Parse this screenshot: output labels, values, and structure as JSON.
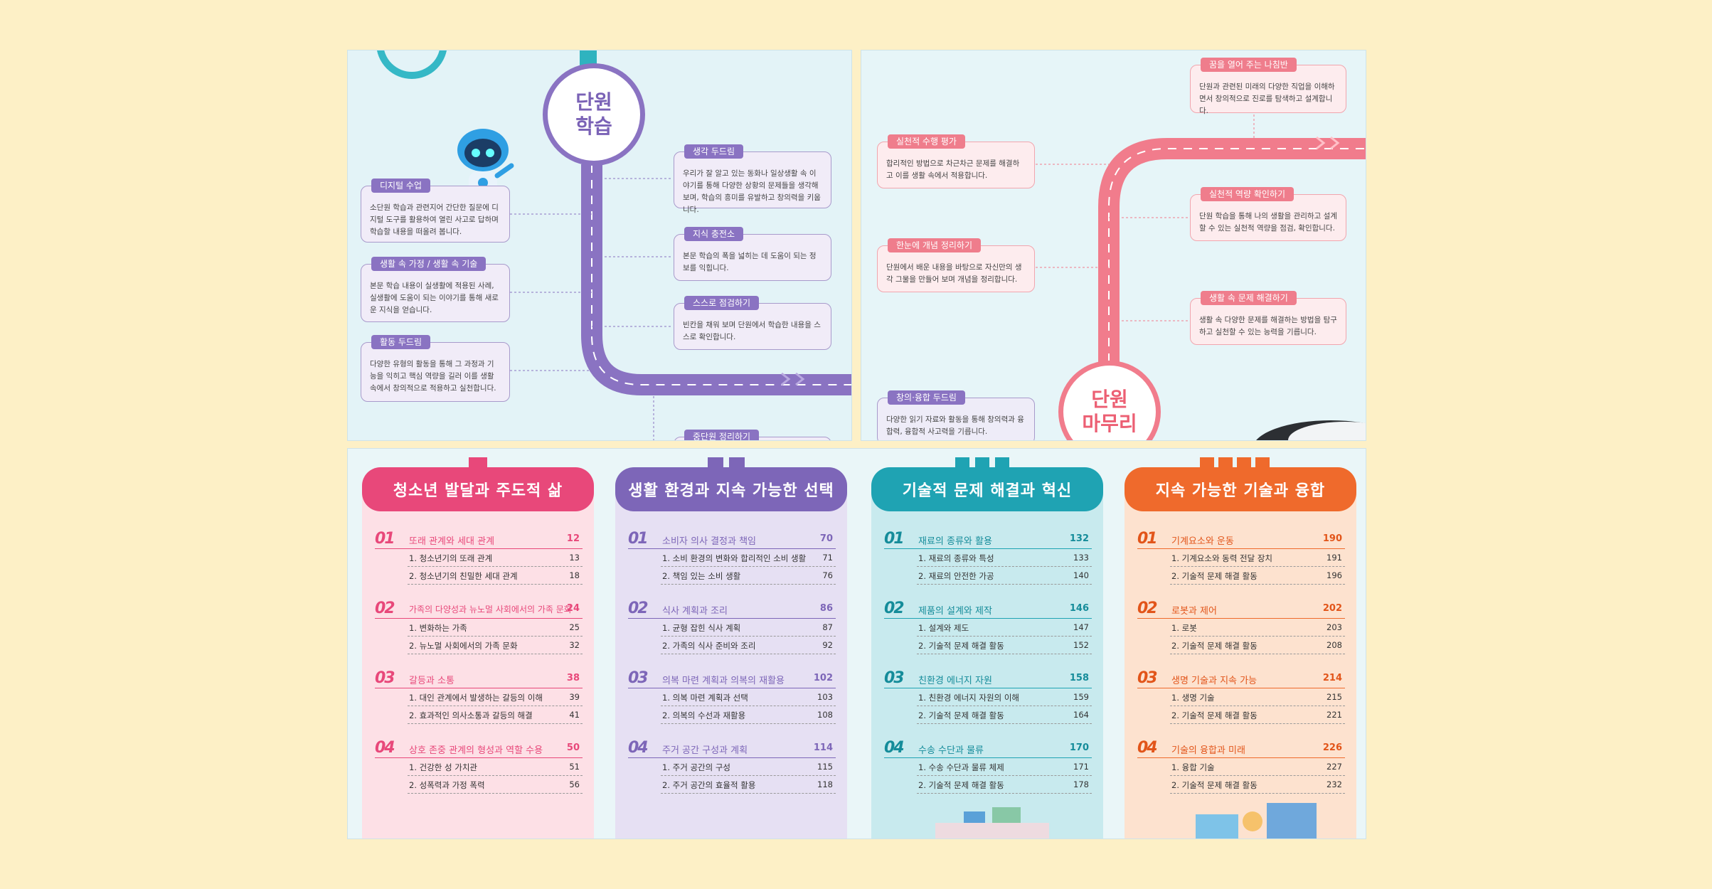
{
  "panel1": {
    "circle": [
      "단원",
      "학습"
    ],
    "boxes": [
      {
        "tag": "생각 두드림",
        "text": "우리가 잘 알고 있는 동화나 일상생활 속 이야기를 통해 다양한 상황의 문제들을 생각해 보며, 학습의 흥미를 유발하고 창의력을 키웁니다."
      },
      {
        "tag": "디지털 수업",
        "text": "소단원 학습과 관련지어 간단한 질문에 디지털 도구를 활용하여 열린 사고로 답하며 학습할 내용을 떠올려 봅니다."
      },
      {
        "tag": "지식 충전소",
        "text": "본문 학습의 폭을 넓히는 데 도움이 되는 정보를 익힙니다."
      },
      {
        "tag": "생활 속 가정 / 생활 속 기술",
        "text": "본문 학습 내용이 실생활에 적용된 사례, 실생활에 도움이 되는 이야기를 통해 새로운 지식을 얻습니다."
      },
      {
        "tag": "스스로 점검하기",
        "text": "빈칸을 채워 보며 단원에서 학습한 내용을 스스로 확인합니다."
      },
      {
        "tag": "활동 두드림",
        "text": "다양한 유형의 활동을 통해 그 과정과 기능을 익히고 핵심 역량을 길러 이를 생활 속에서 창의적으로 적용하고 실천합니다."
      },
      {
        "tag": "중단원 정리하기",
        "text": ""
      }
    ]
  },
  "panel2": {
    "circle": [
      "단원",
      "마무리"
    ],
    "boxes": [
      {
        "tag": "꿈을 열어 주는 나침반",
        "text": "단원과 관련된 미래의 다양한 직업을 이해하면서 창의적으로 진로를 탐색하고 설계합니다."
      },
      {
        "tag": "실천적 수행 평가",
        "text": "합리적인 방법으로 차근차근 문제를 해결하고 이를 생활 속에서 적용합니다."
      },
      {
        "tag": "실천적 역량 확인하기",
        "text": "단원 학습을 통해 나의 생활을 관리하고 설계할 수 있는 실천적 역량을 점검, 확인합니다."
      },
      {
        "tag": "한눈에 개념 정리하기",
        "text": "단원에서 배운 내용을 바탕으로 자신만의 생각 그물을 만들어 보며 개념을 정리합니다."
      },
      {
        "tag": "생활 속 문제 해결하기",
        "text": "생활 속 다양한 문제를 해결하는 방법을 탐구하고 실천할 수 있는 능력을 기릅니다."
      },
      {
        "tag": "창의·융합 두드림",
        "text": "다양한 읽기 자료와 활동을 통해 창의력과 융합력, 융합적 사고력을 기릅니다."
      }
    ]
  },
  "columns": [
    {
      "title": "청소년 발달과 주도적 삶",
      "color": "#e8487a",
      "bg": "#fde0e6",
      "units": [
        {
          "num": "01",
          "title": "또래 관계와 세대 관계",
          "page": "12",
          "subs": [
            [
              "1. 청소년기의 또래 관계",
              "13"
            ],
            [
              "2. 청소년기의 친밀한 세대 관계",
              "18"
            ]
          ]
        },
        {
          "num": "02",
          "title": "가족의 다양성과 뉴노멀 사회에서의 가족 문화",
          "page": "24",
          "subs": [
            [
              "1. 변화하는 가족",
              "25"
            ],
            [
              "2. 뉴노멀 사회에서의 가족 문화",
              "32"
            ]
          ]
        },
        {
          "num": "03",
          "title": "갈등과 소통",
          "page": "38",
          "subs": [
            [
              "1. 대인 관계에서 발생하는 갈등의 이해",
              "39"
            ],
            [
              "2. 효과적인 의사소통과 갈등의 해결",
              "41"
            ]
          ]
        },
        {
          "num": "04",
          "title": "상호 존중 관계의 형성과 역할 수용",
          "page": "50",
          "subs": [
            [
              "1. 건강한 성 가치관",
              "51"
            ],
            [
              "2. 성폭력과 가정 폭력",
              "56"
            ]
          ]
        }
      ]
    },
    {
      "title": "생활 환경과 지속 가능한 선택",
      "color": "#7d66b8",
      "bg": "#e6e0f3",
      "units": [
        {
          "num": "01",
          "title": "소비자 의사 결정과 책임",
          "page": "70",
          "subs": [
            [
              "1. 소비 환경의 변화와 합리적인 소비 생활",
              "71"
            ],
            [
              "2. 책임 있는 소비 생활",
              "76"
            ]
          ]
        },
        {
          "num": "02",
          "title": "식사 계획과 조리",
          "page": "86",
          "subs": [
            [
              "1. 균형 잡힌 식사 계획",
              "87"
            ],
            [
              "2. 가족의 식사 준비와 조리",
              "92"
            ]
          ]
        },
        {
          "num": "03",
          "title": "의복 마련 계획과 의복의 재활용",
          "page": "102",
          "subs": [
            [
              "1. 의복 마련 계획과 선택",
              "103"
            ],
            [
              "2. 의복의 수선과 재활용",
              "108"
            ]
          ]
        },
        {
          "num": "04",
          "title": "주거 공간 구성과 계획",
          "page": "114",
          "subs": [
            [
              "1. 주거 공간의 구성",
              "115"
            ],
            [
              "2. 주거 공간의 효율적 활용",
              "118"
            ]
          ]
        }
      ]
    },
    {
      "title": "기술적 문제 해결과 혁신",
      "color": "#1fa3b3",
      "bg": "#c8eaee",
      "units": [
        {
          "num": "01",
          "title": "재료의 종류와 활용",
          "page": "132",
          "subs": [
            [
              "1. 재료의 종류와 특성",
              "133"
            ],
            [
              "2. 재료의 안전한 가공",
              "140"
            ]
          ]
        },
        {
          "num": "02",
          "title": "제품의 설계와 제작",
          "page": "146",
          "subs": [
            [
              "1. 설계와 제도",
              "147"
            ],
            [
              "2. 기술적 문제 해결 활동",
              "152"
            ]
          ]
        },
        {
          "num": "03",
          "title": "친환경 에너지 자원",
          "page": "158",
          "subs": [
            [
              "1. 친환경 에너지 자원의 이해",
              "159"
            ],
            [
              "2. 기술적 문제 해결 활동",
              "164"
            ]
          ]
        },
        {
          "num": "04",
          "title": "수송 수단과 물류",
          "page": "170",
          "subs": [
            [
              "1. 수송 수단과 물류 체제",
              "171"
            ],
            [
              "2. 기술적 문제 해결 활동",
              "178"
            ]
          ]
        }
      ]
    },
    {
      "title": "지속 가능한 기술과 융합",
      "color": "#ef6a2c",
      "bg": "#fde2cf",
      "units": [
        {
          "num": "01",
          "title": "기계요소와 운동",
          "page": "190",
          "subs": [
            [
              "1. 기계요소와 동력 전달 장치",
              "191"
            ],
            [
              "2. 기술적 문제 해결 활동",
              "196"
            ]
          ]
        },
        {
          "num": "02",
          "title": "로봇과 제어",
          "page": "202",
          "subs": [
            [
              "1. 로봇",
              "203"
            ],
            [
              "2. 기술적 문제 해결 활동",
              "208"
            ]
          ]
        },
        {
          "num": "03",
          "title": "생명 기술과 지속 가능",
          "page": "214",
          "subs": [
            [
              "1. 생명 기술",
              "215"
            ],
            [
              "2. 기술적 문제 해결 활동",
              "221"
            ]
          ]
        },
        {
          "num": "04",
          "title": "기술의 융합과 미래",
          "page": "226",
          "subs": [
            [
              "1. 융합 기술",
              "227"
            ],
            [
              "2. 기술적 문제 해결 활동",
              "232"
            ]
          ]
        }
      ]
    }
  ]
}
